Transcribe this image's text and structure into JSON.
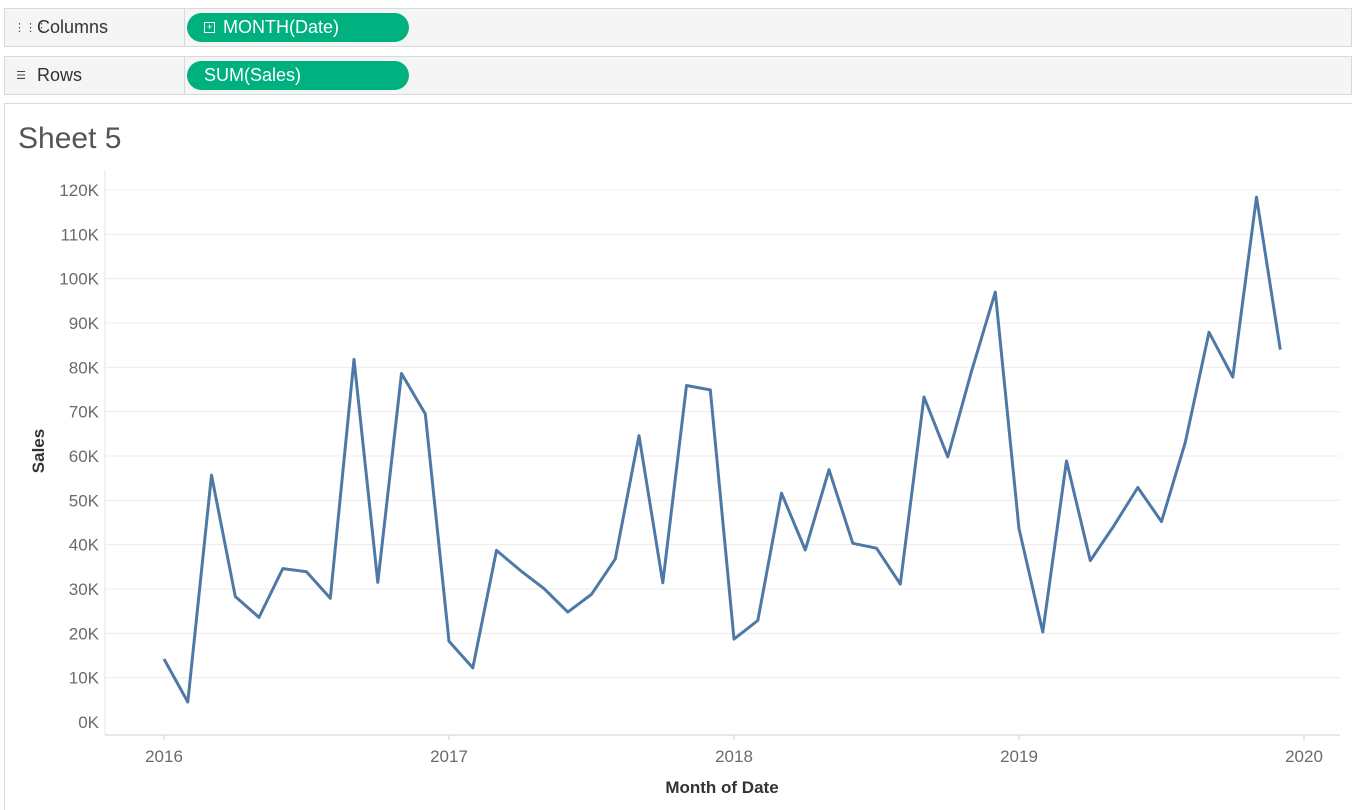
{
  "shelves": {
    "columns": {
      "label": "Columns",
      "icon": "columns-icon",
      "pill": "MONTH(Date)"
    },
    "rows": {
      "label": "Rows",
      "icon": "rows-icon",
      "pill": "SUM(Sales)"
    }
  },
  "sheet": {
    "title": "Sheet 5"
  },
  "colors": {
    "pill": "#00b180",
    "line": "#4e79a7"
  },
  "chart_data": {
    "type": "line",
    "title": "Sheet 5",
    "xlabel": "Month of Date",
    "ylabel": "Sales",
    "ylim": [
      0,
      120000
    ],
    "y_ticks": [
      {
        "v": 0,
        "label": "0K"
      },
      {
        "v": 10000,
        "label": "10K"
      },
      {
        "v": 20000,
        "label": "20K"
      },
      {
        "v": 30000,
        "label": "30K"
      },
      {
        "v": 40000,
        "label": "40K"
      },
      {
        "v": 50000,
        "label": "50K"
      },
      {
        "v": 60000,
        "label": "60K"
      },
      {
        "v": 70000,
        "label": "70K"
      },
      {
        "v": 80000,
        "label": "80K"
      },
      {
        "v": 90000,
        "label": "90K"
      },
      {
        "v": 100000,
        "label": "100K"
      },
      {
        "v": 110000,
        "label": "110K"
      },
      {
        "v": 120000,
        "label": "120K"
      }
    ],
    "x_ticks": [
      {
        "v": "2016-01",
        "label": "2016"
      },
      {
        "v": "2017-01",
        "label": "2017"
      },
      {
        "v": "2018-01",
        "label": "2018"
      },
      {
        "v": "2019-01",
        "label": "2019"
      },
      {
        "v": "2020-01",
        "label": "2020"
      }
    ],
    "grid": "horizontal",
    "series": [
      {
        "x": [
          "2016-01",
          "2016-02",
          "2016-03",
          "2016-04",
          "2016-05",
          "2016-06",
          "2016-07",
          "2016-08",
          "2016-09",
          "2016-10",
          "2016-11",
          "2016-12",
          "2017-01",
          "2017-02",
          "2017-03",
          "2017-04",
          "2017-05",
          "2017-06",
          "2017-07",
          "2017-08",
          "2017-09",
          "2017-10",
          "2017-11",
          "2017-12",
          "2018-01",
          "2018-02",
          "2018-03",
          "2018-04",
          "2018-05",
          "2018-06",
          "2018-07",
          "2018-08",
          "2018-09",
          "2018-10",
          "2018-11",
          "2018-12",
          "2019-01",
          "2019-02",
          "2019-03",
          "2019-04",
          "2019-05",
          "2019-06",
          "2019-07",
          "2019-08",
          "2019-09",
          "2019-10",
          "2019-11",
          "2019-12"
        ],
        "values": [
          14200,
          4500,
          55700,
          28300,
          23600,
          34600,
          33900,
          27900,
          81800,
          31500,
          78600,
          69500,
          18200,
          12200,
          38700,
          34200,
          30100,
          24800,
          28800,
          36800,
          64600,
          31400,
          75900,
          74900,
          18700,
          22900,
          51600,
          38800,
          56900,
          40300,
          39200,
          31100,
          73300,
          59800,
          79100,
          97000,
          43600,
          20300,
          58900,
          36400,
          44300,
          52900,
          45200,
          63100,
          87900,
          77800,
          118400,
          84000
        ]
      }
    ]
  }
}
